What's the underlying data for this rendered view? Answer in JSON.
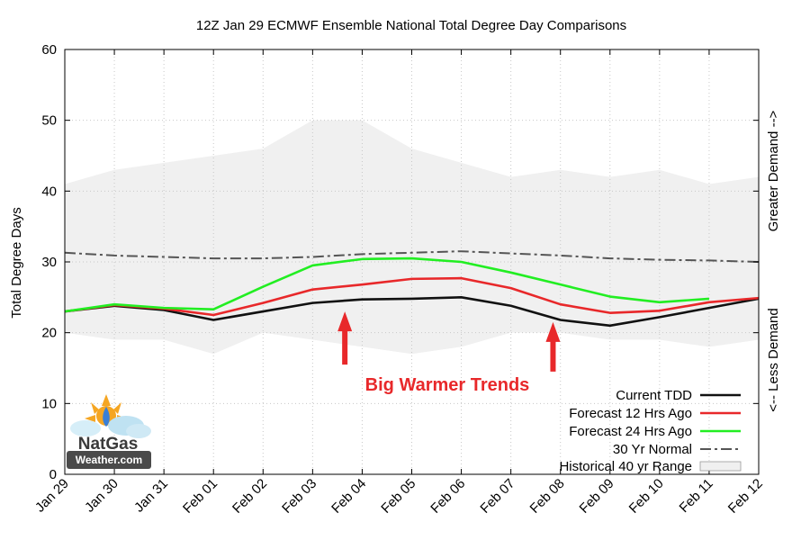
{
  "chart_data": {
    "type": "line",
    "title": "12Z Jan 29 ECMWF Ensemble National Total Degree Day Comparisons",
    "ylabel": "Total Degree Days",
    "xlabel": "",
    "right_label_top": "Greater Demand -->",
    "right_label_bottom": "<-- Less Demand",
    "ylim": [
      0,
      60
    ],
    "yticks": [
      0,
      10,
      20,
      30,
      40,
      50,
      60
    ],
    "categories": [
      "Jan 29",
      "Jan 30",
      "Jan 31",
      "Feb 01",
      "Feb 02",
      "Feb 03",
      "Feb 04",
      "Feb 05",
      "Feb 06",
      "Feb 07",
      "Feb 08",
      "Feb 09",
      "Feb 10",
      "Feb 11",
      "Feb 12"
    ],
    "grid": true,
    "legend_position": "bottom-right",
    "range": {
      "name": "Historical 40 yr Range",
      "color": "#f0f0f0",
      "upper": [
        41,
        43,
        44,
        45,
        46,
        50,
        50,
        46,
        44,
        42,
        43,
        42,
        43,
        41,
        42
      ],
      "lower": [
        20,
        19,
        19,
        17,
        20,
        19,
        18,
        17,
        18,
        20,
        20,
        19,
        19,
        18,
        19
      ]
    },
    "series": [
      {
        "name": "Current TDD",
        "color": "#111111",
        "dash": "solid",
        "values": [
          23.0,
          23.8,
          23.2,
          21.8,
          23.0,
          24.2,
          24.7,
          24.8,
          25.0,
          23.8,
          21.8,
          21.0,
          22.2,
          23.5,
          24.8
        ]
      },
      {
        "name": "Forecast 12 Hrs Ago",
        "color": "#e8282a",
        "dash": "solid",
        "values": [
          23.0,
          23.9,
          23.4,
          22.5,
          24.2,
          26.1,
          26.8,
          27.6,
          27.7,
          26.3,
          24.0,
          22.8,
          23.1,
          24.3,
          24.9
        ]
      },
      {
        "name": "Forecast 24 Hrs Ago",
        "color": "#22ee22",
        "dash": "solid",
        "values": [
          23.0,
          24.0,
          23.5,
          23.3,
          26.5,
          29.5,
          30.4,
          30.5,
          30.0,
          28.5,
          26.8,
          25.1,
          24.3,
          24.8,
          null
        ]
      },
      {
        "name": "30 Yr Normal",
        "color": "#555555",
        "dash": "dashdot",
        "values": [
          31.3,
          30.9,
          30.7,
          30.5,
          30.5,
          30.7,
          31.1,
          31.3,
          31.5,
          31.2,
          30.9,
          30.5,
          30.3,
          30.2,
          30.0
        ]
      }
    ],
    "annotations": [
      {
        "text": "Big Warmer Trends",
        "color": "#e8282a"
      }
    ],
    "arrows": [
      {
        "x": 5.65,
        "y_tip": 23.0,
        "y_base": 15.5,
        "color": "#e8282a"
      },
      {
        "x": 9.85,
        "y_tip": 21.5,
        "y_base": 14.5,
        "color": "#e8282a"
      }
    ],
    "watermark": {
      "line1": "NatGas",
      "line2": "Weather.com"
    }
  }
}
